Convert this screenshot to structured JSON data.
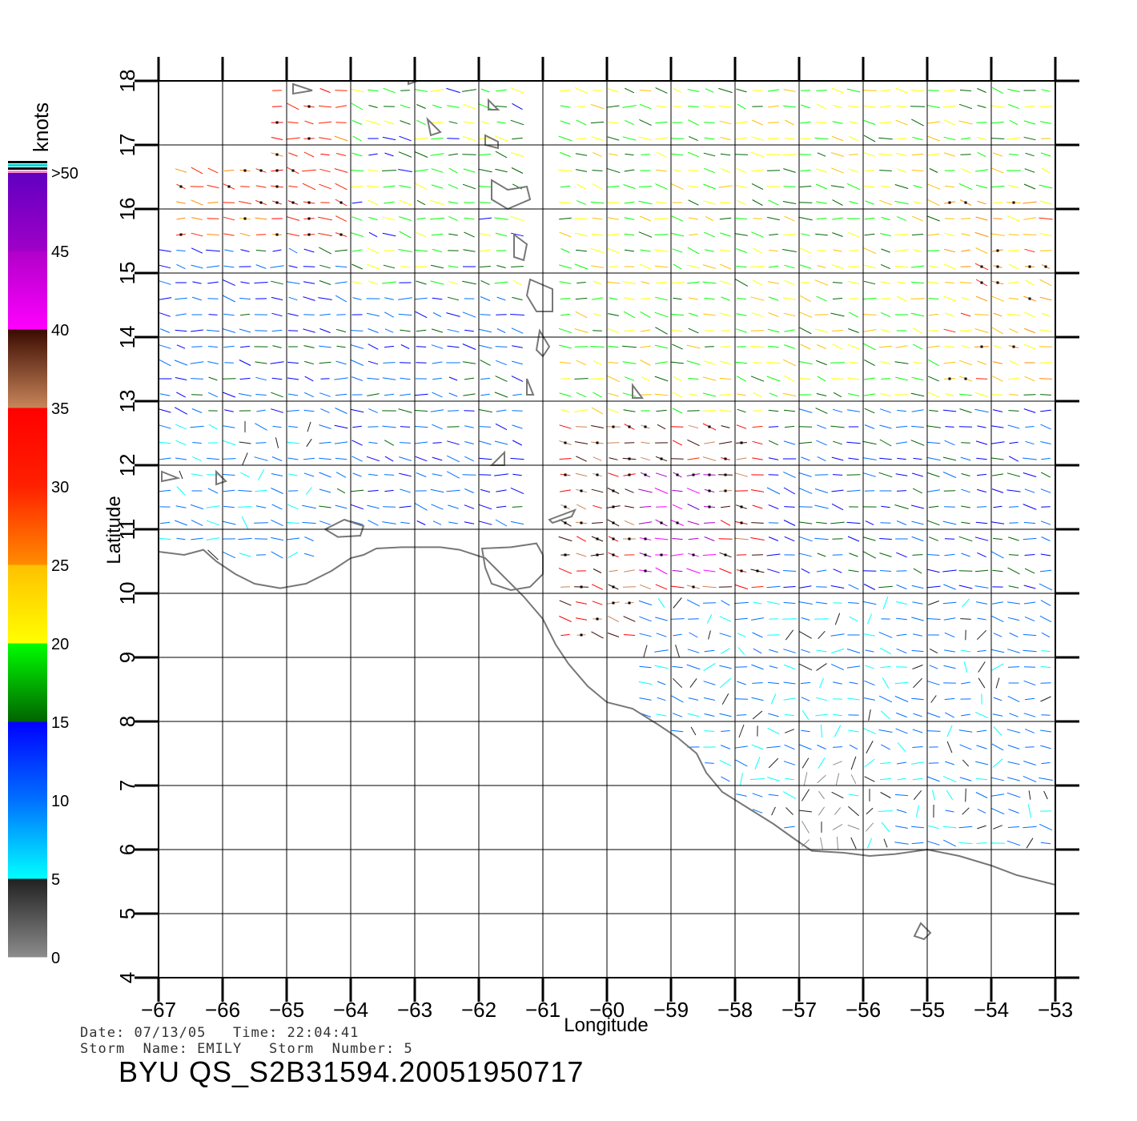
{
  "chart_data": {
    "type": "wind-vector-map",
    "xlabel": "Longitude",
    "ylabel": "Latitude",
    "xlim": [
      -67,
      -53
    ],
    "ylim": [
      4,
      18
    ],
    "x_ticks": [
      -67,
      -66,
      -65,
      -64,
      -63,
      -62,
      -61,
      -60,
      -59,
      -58,
      -57,
      -56,
      -55,
      -54,
      -53
    ],
    "y_ticks": [
      4,
      5,
      6,
      7,
      8,
      9,
      10,
      11,
      12,
      13,
      14,
      15,
      16,
      17,
      18
    ],
    "grid": true,
    "colorbar": {
      "units": "knots",
      "labels": [
        "0",
        "5",
        "10",
        "15",
        "20",
        "25",
        "30",
        "35",
        "40",
        "45",
        ">50"
      ],
      "segments": [
        {
          "from": 0,
          "to": 5,
          "colors": [
            "#8c8c8c",
            "#202020"
          ]
        },
        {
          "from": 5,
          "to": 10,
          "colors": [
            "#00ffff",
            "#0070ff"
          ]
        },
        {
          "from": 10,
          "to": 15,
          "colors": [
            "#0070ff",
            "#0000ff"
          ]
        },
        {
          "from": 15,
          "to": 20,
          "colors": [
            "#006400",
            "#00ff00"
          ]
        },
        {
          "from": 20,
          "to": 25,
          "colors": [
            "#ffff00",
            "#ffc000"
          ]
        },
        {
          "from": 25,
          "to": 30,
          "colors": [
            "#ff8c00",
            "#ff2000"
          ]
        },
        {
          "from": 30,
          "to": 35,
          "colors": [
            "#ff2000",
            "#ff0000"
          ]
        },
        {
          "from": 35,
          "to": 40,
          "colors": [
            "#c8855a",
            "#3a0a00"
          ]
        },
        {
          "from": 40,
          "to": 45,
          "colors": [
            "#ff00ff",
            "#b000c8"
          ]
        },
        {
          "from": 45,
          "to": 50,
          "colors": [
            "#a000c8",
            "#6000c0"
          ]
        }
      ]
    },
    "wind_regions": [
      {
        "lon": [
          -66.8,
          -64.9
        ],
        "lat": [
          13.0,
          16.6
        ],
        "speed": 28
      },
      {
        "lon": [
          -65.3,
          -62.5
        ],
        "lat": [
          15.5,
          18.0
        ],
        "speed": 31
      },
      {
        "lon": [
          -66.9,
          -61.4
        ],
        "lat": [
          11.0,
          15.5
        ],
        "speed": 12
      },
      {
        "lon": [
          -66.9,
          -64.5
        ],
        "lat": [
          10.4,
          12.8
        ],
        "speed": 8
      },
      {
        "lon": [
          -64.0,
          -61.4
        ],
        "lat": [
          14.8,
          18.0
        ],
        "speed": 18
      },
      {
        "lon": [
          -60.9,
          -53.1
        ],
        "lat": [
          12.8,
          18.0
        ],
        "speed": 20
      },
      {
        "lon": [
          -60.8,
          -57.5
        ],
        "lat": [
          9.2,
          12.8
        ],
        "speed": 36
      },
      {
        "lon": [
          -59.6,
          -58.3
        ],
        "lat": [
          10.3,
          12.0
        ],
        "speed": 44
      },
      {
        "lon": [
          -57.5,
          -53.1
        ],
        "lat": [
          10.0,
          13.0
        ],
        "speed": 13
      },
      {
        "lon": [
          -59.5,
          -53.1
        ],
        "lat": [
          6.0,
          10.0
        ],
        "speed": 8
      },
      {
        "lon": [
          -57.0,
          -55.5
        ],
        "lat": [
          6.1,
          7.5
        ],
        "speed": 3
      },
      {
        "lon": [
          -54.8,
          -53.1
        ],
        "lat": [
          13.2,
          16.3
        ],
        "speed": 24
      }
    ],
    "wind_direction_deg_to": 280,
    "land_outlines": [
      {
        "name": "venezuela-coast",
        "points": [
          [
            -67,
            10.65
          ],
          [
            -66.6,
            10.6
          ],
          [
            -66.3,
            10.68
          ],
          [
            -66.1,
            10.5
          ],
          [
            -65.8,
            10.3
          ],
          [
            -65.5,
            10.15
          ],
          [
            -65.1,
            10.08
          ],
          [
            -64.7,
            10.15
          ],
          [
            -64.3,
            10.35
          ],
          [
            -64.0,
            10.55
          ],
          [
            -63.8,
            10.6
          ],
          [
            -63.6,
            10.7
          ],
          [
            -63.2,
            10.72
          ],
          [
            -62.6,
            10.72
          ],
          [
            -62.3,
            10.68
          ],
          [
            -61.9,
            10.55
          ],
          [
            -61.7,
            10.35
          ],
          [
            -61.5,
            10.15
          ],
          [
            -61.3,
            9.95
          ],
          [
            -61.0,
            9.6
          ],
          [
            -60.8,
            9.2
          ],
          [
            -60.6,
            8.9
          ],
          [
            -60.3,
            8.55
          ],
          [
            -60.0,
            8.3
          ],
          [
            -59.6,
            8.2
          ],
          [
            -59.2,
            7.95
          ],
          [
            -58.9,
            7.75
          ],
          [
            -58.6,
            7.5
          ],
          [
            -58.45,
            7.2
          ],
          [
            -58.2,
            6.9
          ],
          [
            -57.8,
            6.65
          ],
          [
            -57.4,
            6.4
          ],
          [
            -57.05,
            6.15
          ],
          [
            -56.8,
            5.98
          ],
          [
            -56.3,
            5.95
          ],
          [
            -55.9,
            5.9
          ],
          [
            -55.5,
            5.93
          ],
          [
            -55.0,
            6.0
          ],
          [
            -54.5,
            5.9
          ],
          [
            -54.0,
            5.75
          ],
          [
            -53.6,
            5.6
          ],
          [
            -53.0,
            5.45
          ]
        ]
      },
      {
        "name": "trinidad",
        "points": [
          [
            -61.95,
            10.7
          ],
          [
            -61.5,
            10.72
          ],
          [
            -61.1,
            10.78
          ],
          [
            -61.0,
            10.6
          ],
          [
            -61.0,
            10.3
          ],
          [
            -61.2,
            10.1
          ],
          [
            -61.5,
            10.05
          ],
          [
            -61.8,
            10.15
          ],
          [
            -61.9,
            10.4
          ]
        ]
      },
      {
        "name": "tobago",
        "points": [
          [
            -60.9,
            11.15
          ],
          [
            -60.5,
            11.3
          ],
          [
            -60.55,
            11.2
          ],
          [
            -60.85,
            11.1
          ]
        ]
      },
      {
        "name": "margarita",
        "points": [
          [
            -64.4,
            11.0
          ],
          [
            -64.1,
            11.15
          ],
          [
            -63.8,
            11.05
          ],
          [
            -63.85,
            10.9
          ],
          [
            -64.2,
            10.88
          ]
        ]
      },
      {
        "name": "grenada",
        "points": [
          [
            -61.8,
            12.0
          ],
          [
            -61.6,
            12.2
          ],
          [
            -61.6,
            12.0
          ]
        ]
      },
      {
        "name": "st-vincent",
        "points": [
          [
            -61.25,
            13.35
          ],
          [
            -61.15,
            13.1
          ],
          [
            -61.25,
            13.1
          ]
        ]
      },
      {
        "name": "st-lucia",
        "points": [
          [
            -61.05,
            14.1
          ],
          [
            -60.9,
            13.85
          ],
          [
            -61.0,
            13.7
          ],
          [
            -61.1,
            13.8
          ]
        ]
      },
      {
        "name": "martinique",
        "points": [
          [
            -61.2,
            14.9
          ],
          [
            -60.85,
            14.75
          ],
          [
            -60.85,
            14.4
          ],
          [
            -61.1,
            14.4
          ],
          [
            -61.25,
            14.65
          ]
        ]
      },
      {
        "name": "dominica",
        "points": [
          [
            -61.45,
            15.6
          ],
          [
            -61.25,
            15.45
          ],
          [
            -61.3,
            15.2
          ],
          [
            -61.45,
            15.25
          ]
        ]
      },
      {
        "name": "guadeloupe",
        "points": [
          [
            -61.8,
            16.45
          ],
          [
            -61.55,
            16.3
          ],
          [
            -61.25,
            16.35
          ],
          [
            -61.2,
            16.15
          ],
          [
            -61.55,
            16.0
          ],
          [
            -61.8,
            16.15
          ]
        ]
      },
      {
        "name": "antigua",
        "points": [
          [
            -61.9,
            17.15
          ],
          [
            -61.7,
            17.05
          ],
          [
            -61.7,
            16.95
          ],
          [
            -61.9,
            17.0
          ]
        ]
      },
      {
        "name": "barbuda",
        "points": [
          [
            -61.85,
            17.7
          ],
          [
            -61.7,
            17.55
          ],
          [
            -61.85,
            17.55
          ]
        ]
      },
      {
        "name": "st-kitts",
        "points": [
          [
            -62.8,
            17.4
          ],
          [
            -62.6,
            17.2
          ],
          [
            -62.75,
            17.15
          ]
        ]
      },
      {
        "name": "st-martin",
        "points": [
          [
            -63.1,
            18.1
          ],
          [
            -62.95,
            18.0
          ],
          [
            -63.1,
            17.95
          ]
        ]
      },
      {
        "name": "virgin-islands",
        "points": [
          [
            -64.9,
            17.95
          ],
          [
            -64.6,
            17.85
          ],
          [
            -64.9,
            17.8
          ]
        ]
      },
      {
        "name": "barbados",
        "points": [
          [
            -59.6,
            13.25
          ],
          [
            -59.45,
            13.05
          ],
          [
            -59.6,
            13.05
          ]
        ]
      },
      {
        "name": "curacao",
        "points": [
          [
            -66.95,
            11.9
          ],
          [
            -66.7,
            11.8
          ],
          [
            -66.95,
            11.75
          ]
        ]
      },
      {
        "name": "bonaire",
        "points": [
          [
            -66.1,
            11.9
          ],
          [
            -65.95,
            11.75
          ],
          [
            -66.1,
            11.7
          ]
        ]
      },
      {
        "name": "guyana-island",
        "points": [
          [
            -55.1,
            4.85
          ],
          [
            -54.95,
            4.7
          ],
          [
            -55.05,
            4.6
          ],
          [
            -55.2,
            4.65
          ]
        ]
      }
    ]
  },
  "footer": {
    "date_label": "Date:",
    "date": "07/13/05",
    "time_label": "Time:",
    "time": "22:04:41",
    "storm_name_label": "Storm  Name:",
    "storm_name": "EMILY",
    "storm_number_label": "Storm  Number:",
    "storm_number": "5",
    "product": "BYU  QS_S2B31594.20051950717"
  }
}
